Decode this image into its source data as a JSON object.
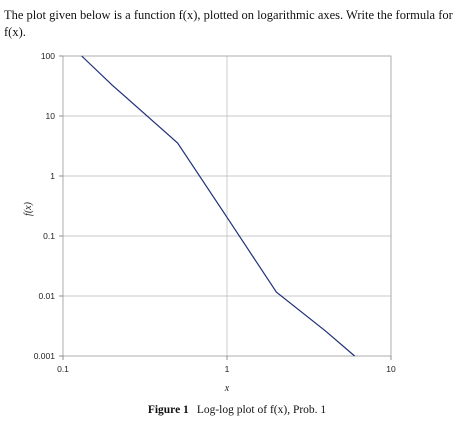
{
  "problem_text": "The plot given below is a function f(x), plotted on logarithmic axes. Write the formula for f(x).",
  "caption": {
    "label": "Figure 1",
    "text": "Log-log plot of f(x), Prob. 1"
  },
  "chart_data": {
    "type": "line",
    "title": "",
    "xlabel": "x",
    "ylabel": "f(x)",
    "xscale": "log",
    "yscale": "log",
    "xlim": [
      0.1,
      10
    ],
    "ylim": [
      0.001,
      100
    ],
    "grid": true,
    "x_ticks": [
      "0.1",
      "1",
      "10"
    ],
    "y_ticks": [
      "0.001",
      "0.01",
      "0.1",
      "1",
      "10",
      "100"
    ],
    "series": [
      {
        "x": [
          0.13,
          0.2,
          0.5,
          1,
          2,
          4,
          6
        ],
        "y": [
          100,
          32.5,
          3.55,
          0.205,
          0.0116,
          0.00259,
          0.001
        ]
      }
    ],
    "line_color": "#1f2f7a"
  }
}
